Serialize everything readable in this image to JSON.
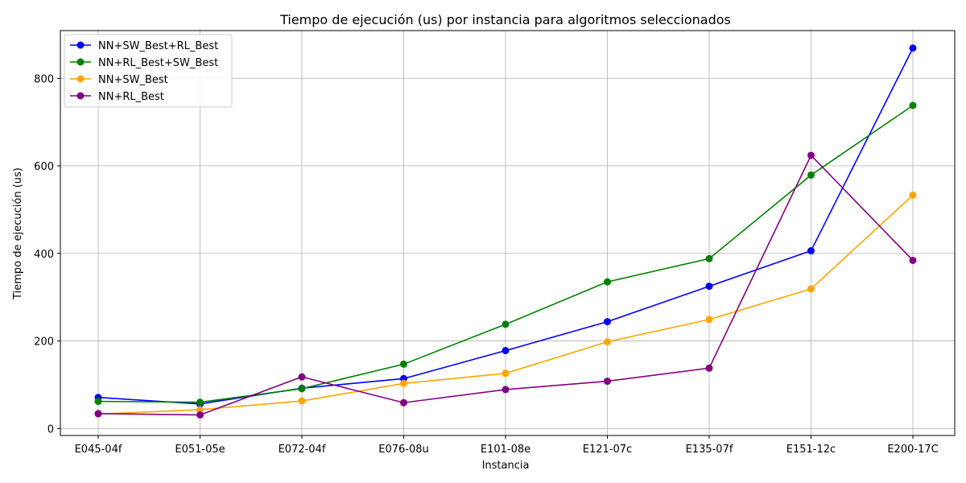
{
  "chart_data": {
    "type": "line",
    "title": "Tiempo de ejecución (us) por instancia para algoritmos seleccionados",
    "xlabel": "Instancia",
    "ylabel": "Tiempo de ejecución (us)",
    "categories": [
      "E045-04f",
      "E051-05e",
      "E072-04f",
      "E076-08u",
      "E101-08e",
      "E121-07c",
      "E135-07f",
      "E151-12c",
      "E200-17C"
    ],
    "ylim": [
      -16,
      909
    ],
    "yticks": [
      0,
      200,
      400,
      600,
      800
    ],
    "grid": true,
    "legend_position": "top-left",
    "series": [
      {
        "name": "NN+SW_Best+RL_Best",
        "color": "#0000ff",
        "values": [
          71,
          56,
          92,
          114,
          178,
          244,
          325,
          406,
          869
        ]
      },
      {
        "name": "NN+RL_Best+SW_Best",
        "color": "#008000",
        "values": [
          62,
          60,
          91,
          147,
          238,
          335,
          388,
          579,
          738
        ]
      },
      {
        "name": "NN+SW_Best",
        "color": "#ffa500",
        "values": [
          33,
          43,
          63,
          103,
          126,
          198,
          249,
          319,
          533
        ]
      },
      {
        "name": "NN+RL_Best",
        "color": "#800080",
        "values": [
          34,
          31,
          118,
          59,
          89,
          108,
          138,
          624,
          384
        ]
      }
    ]
  }
}
